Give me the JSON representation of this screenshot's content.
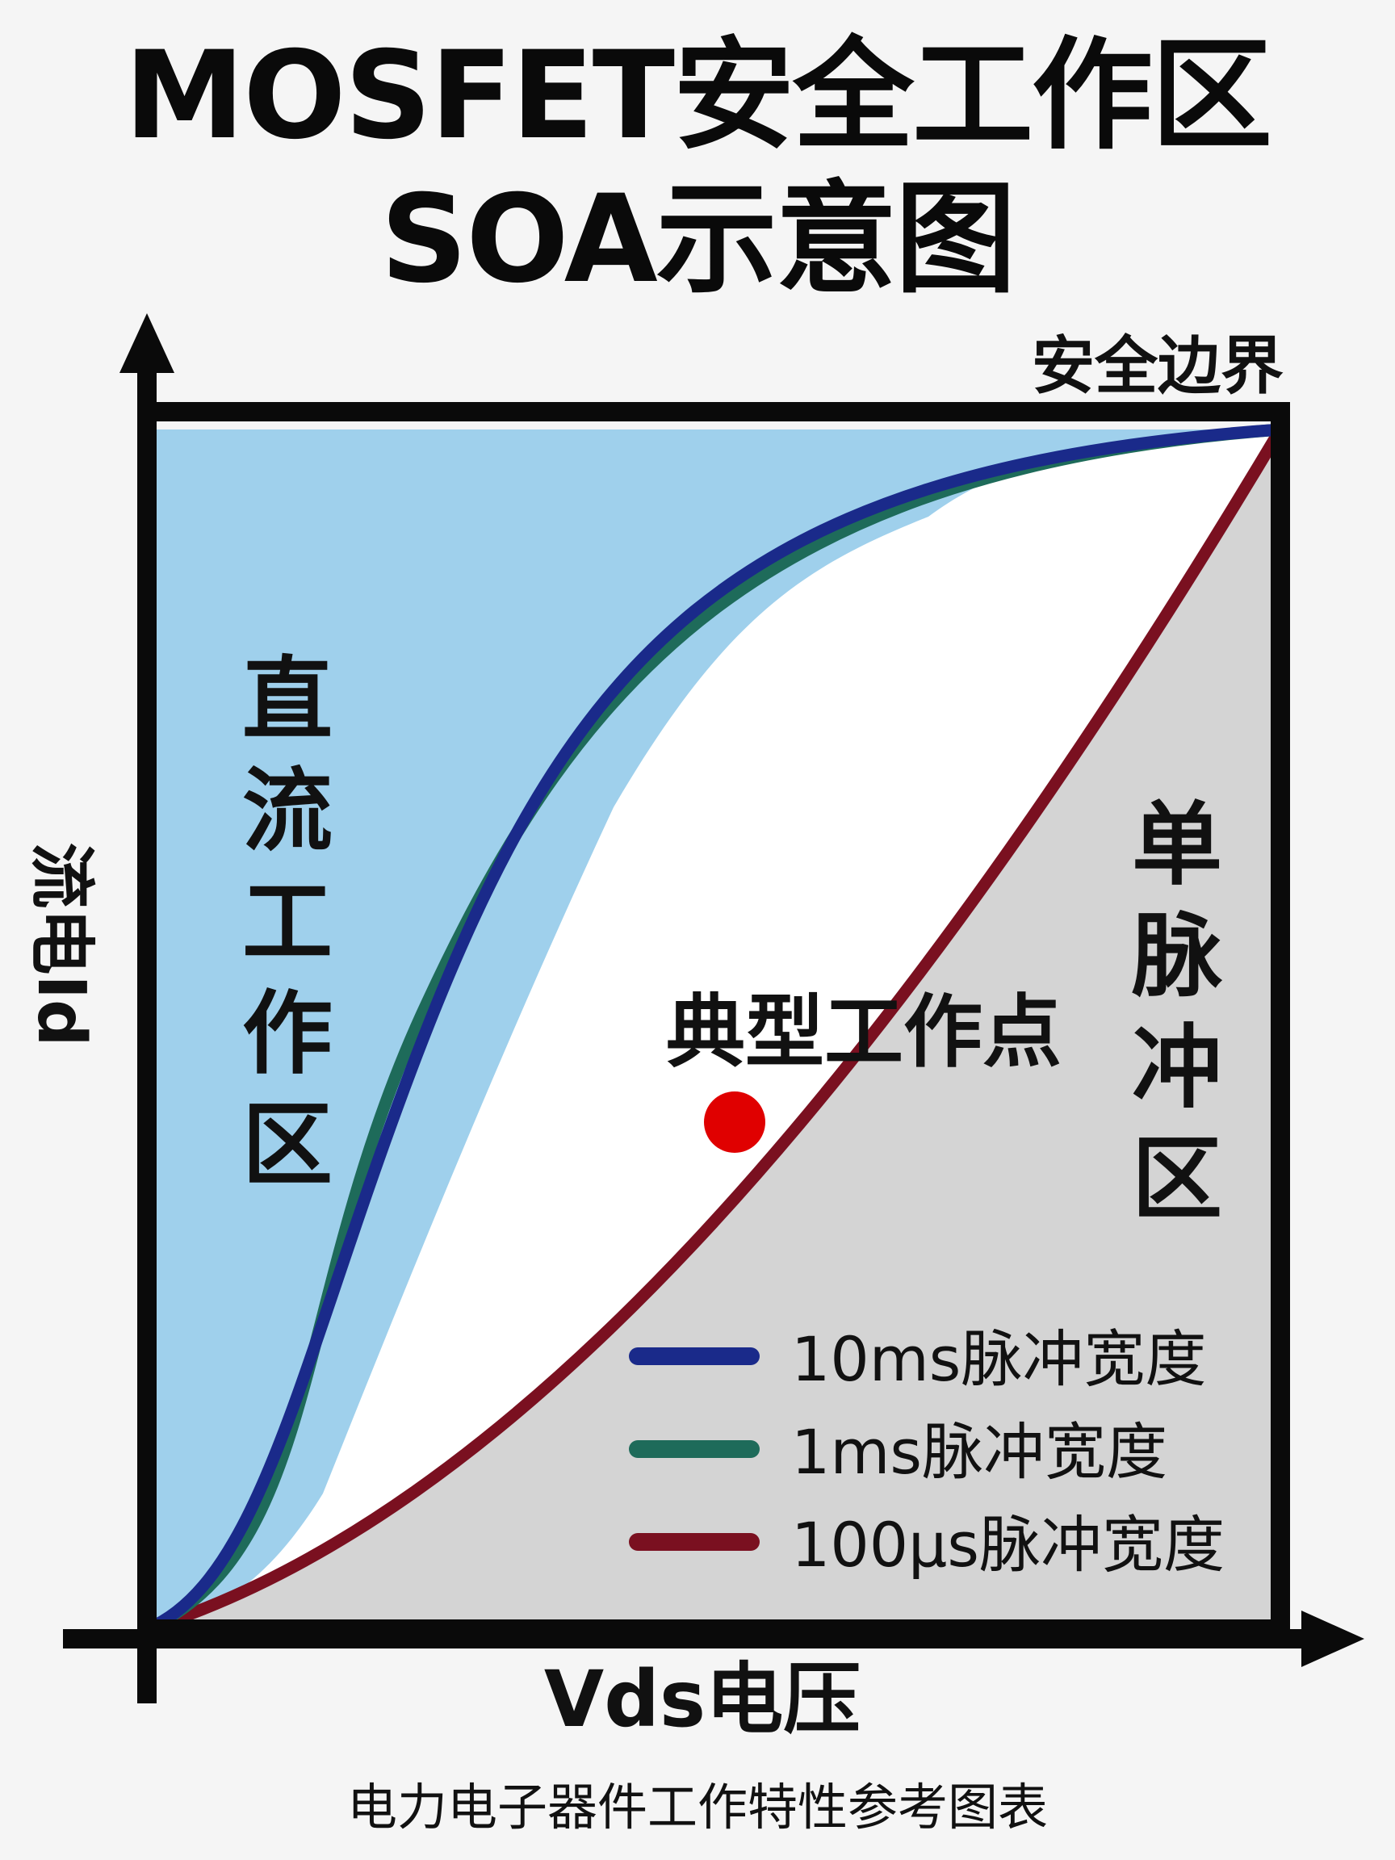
{
  "title": {
    "line1": "MOSFET安全工作区",
    "line2": "SOA示意图"
  },
  "labels": {
    "safe_boundary": "安全边界",
    "y_axis": "流电Id",
    "x_axis": "Vds电压",
    "dc_region": "直流工作区",
    "single_pulse_region": "单脉冲区",
    "typical_point": "典型工作点",
    "caption": "电力电子器件工作特性参考图表"
  },
  "legend": [
    {
      "label": "10ms脉冲宽度",
      "color": "#1a2a8a"
    },
    {
      "label": "1ms脉冲宽度",
      "color": "#1e6b5a"
    },
    {
      "label": "100µs脉冲宽度",
      "color": "#7a1020"
    }
  ],
  "colors": {
    "dc_region_fill": "#9fd0ec",
    "pulse_region_fill": "#d4d4d4",
    "middle_fill": "#ffffff",
    "typical_point": "#e00000"
  }
}
